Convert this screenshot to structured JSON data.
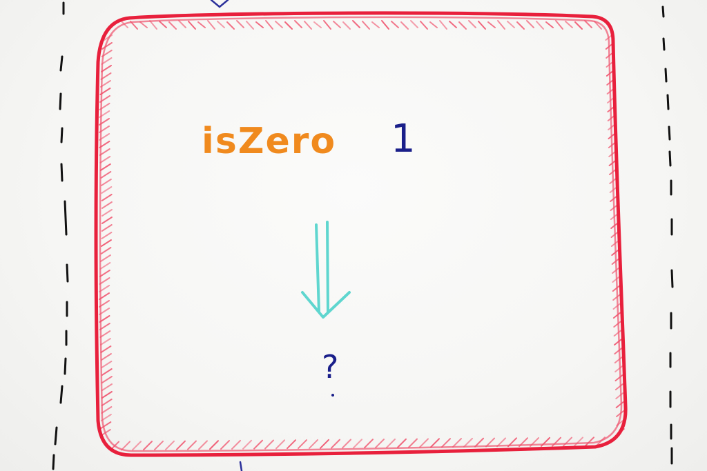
{
  "scene": {
    "function_name": "isZero",
    "argument": "1",
    "result": "?"
  },
  "colors": {
    "board_background": "#f6f6f4",
    "box_outline": "#e8203c",
    "box_hatching": "#f0546e",
    "function_name_ink": "#f08a1e",
    "argument_ink": "#1a1f8a",
    "arrow_ink": "#5fd6cf",
    "result_ink": "#1a1f8a",
    "dashed_line_ink": "#111111",
    "connector_ink": "#2a2f9a"
  },
  "icons": {
    "evaluation_arrow": "double-down-arrow-icon"
  }
}
